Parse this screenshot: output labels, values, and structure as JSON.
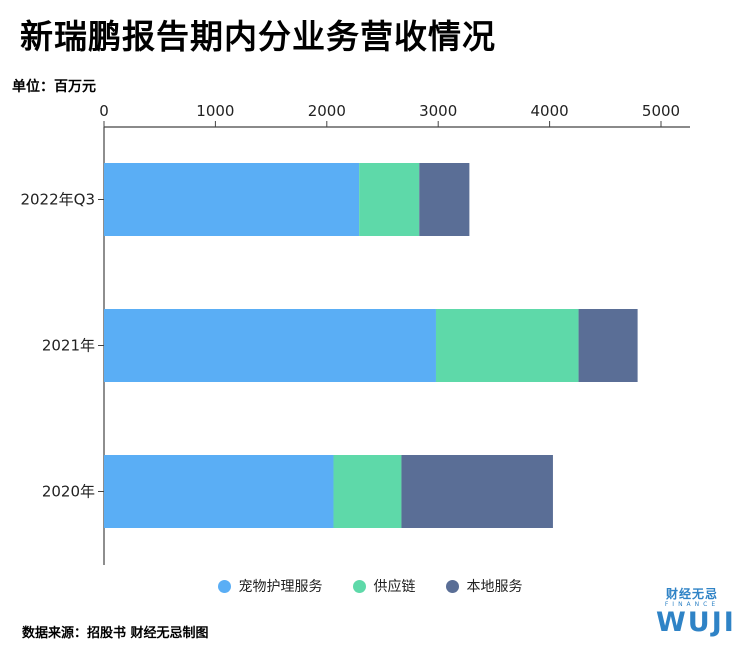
{
  "title": "新瑞鹏报告期内分业务营收情况",
  "unit": "单位：百万元",
  "source": "数据来源：招股书 财经无忌制图",
  "logo": {
    "cn": "财经无忌",
    "sub": "FINANCE",
    "main": "WUJI"
  },
  "colors": {
    "pet_care": "#5aaef5",
    "supply_chain": "#5ed9a9",
    "local_services": "#5a6e96",
    "axis": "#444444"
  },
  "chart_data": {
    "type": "bar",
    "orientation": "horizontal",
    "stacked": true,
    "title": "新瑞鹏报告期内分业务营收情况",
    "xlabel": "单位：百万元",
    "xlim": [
      0,
      5000
    ],
    "x_ticks": [
      0,
      1000,
      2000,
      3000,
      4000,
      5000
    ],
    "x_axis_position": "top",
    "grid": false,
    "legend_position": "bottom",
    "categories": [
      "2022年Q3",
      "2021年",
      "2020年"
    ],
    "series": [
      {
        "name": "宠物护理服务",
        "color": "#5aaef5",
        "values": [
          2290,
          2980,
          2060
        ]
      },
      {
        "name": "供应链",
        "color": "#5ed9a9",
        "values": [
          540,
          1280,
          610
        ]
      },
      {
        "name": "本地服务",
        "color": "#5a6e96",
        "values": [
          450,
          530,
          1360
        ]
      }
    ]
  }
}
